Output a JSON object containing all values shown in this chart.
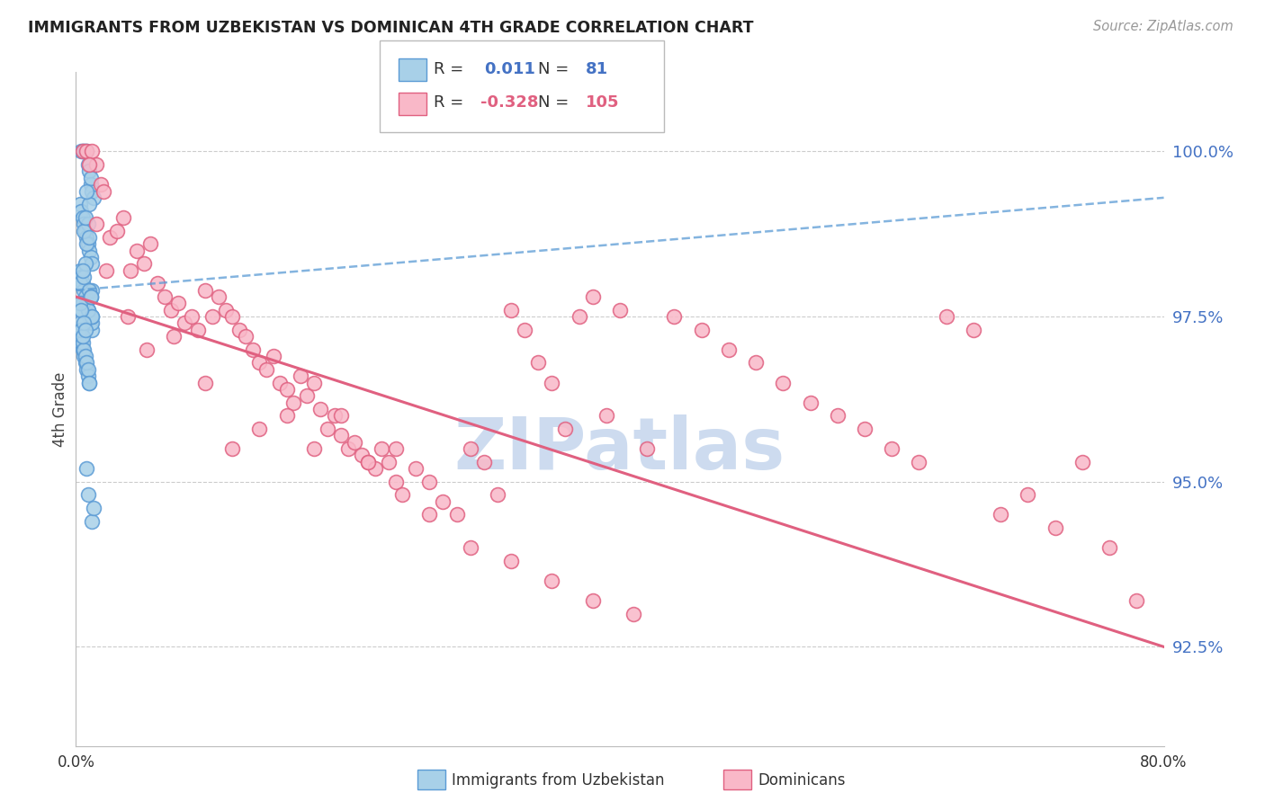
{
  "title": "IMMIGRANTS FROM UZBEKISTAN VS DOMINICAN 4TH GRADE CORRELATION CHART",
  "source": "Source: ZipAtlas.com",
  "ylabel": "4th Grade",
  "y_ticks": [
    92.5,
    95.0,
    97.5,
    100.0
  ],
  "y_tick_labels": [
    "92.5%",
    "95.0%",
    "97.5%",
    "100.0%"
  ],
  "x_min": 0.0,
  "x_max": 80.0,
  "y_min": 91.0,
  "y_max": 101.2,
  "blue_color": "#a8d0e8",
  "pink_color": "#f9b8c8",
  "blue_edge_color": "#5b9bd5",
  "pink_edge_color": "#e06080",
  "blue_line_color": "#5b9bd5",
  "pink_line_color": "#e06080",
  "axis_label_color": "#4472c4",
  "background_color": "#ffffff",
  "grid_color": "#cccccc",
  "watermark_color": "#c8d8ee",
  "uzbekistan_x": [
    0.4,
    0.5,
    0.6,
    0.7,
    0.8,
    0.9,
    1.0,
    1.1,
    1.2,
    1.3,
    0.3,
    0.4,
    0.5,
    0.6,
    0.7,
    0.8,
    0.9,
    1.0,
    1.1,
    1.2,
    0.3,
    0.4,
    0.5,
    0.6,
    0.7,
    0.8,
    0.9,
    1.0,
    1.1,
    1.2,
    0.3,
    0.4,
    0.5,
    0.6,
    0.7,
    0.8,
    0.9,
    1.0,
    1.1,
    1.2,
    0.3,
    0.4,
    0.5,
    0.6,
    0.7,
    0.8,
    0.9,
    1.0,
    1.1,
    1.2,
    0.3,
    0.4,
    0.5,
    0.6,
    0.7,
    0.8,
    0.9,
    1.0,
    1.1,
    1.2,
    0.3,
    0.4,
    0.5,
    0.6,
    0.7,
    0.8,
    0.9,
    1.0,
    1.1,
    1.2,
    0.3,
    0.4,
    0.5,
    0.6,
    0.7,
    0.8,
    0.9,
    1.0,
    1.1,
    1.2,
    1.3
  ],
  "uzbekistan_y": [
    100.0,
    100.0,
    100.0,
    100.0,
    100.0,
    99.8,
    99.7,
    99.5,
    99.4,
    99.3,
    99.2,
    99.1,
    99.0,
    98.9,
    98.8,
    98.7,
    98.6,
    98.5,
    98.4,
    98.3,
    98.2,
    98.1,
    98.0,
    97.9,
    97.8,
    97.7,
    97.6,
    97.5,
    97.4,
    97.3,
    97.2,
    97.1,
    97.0,
    96.9,
    96.8,
    96.7,
    96.6,
    96.5,
    97.5,
    97.4,
    97.3,
    97.2,
    97.1,
    97.0,
    96.9,
    96.8,
    96.7,
    96.5,
    97.8,
    97.9,
    98.0,
    97.6,
    97.7,
    98.1,
    98.3,
    98.6,
    98.9,
    99.2,
    99.6,
    97.5,
    97.4,
    97.3,
    97.2,
    98.8,
    99.0,
    99.4,
    97.6,
    97.9,
    97.8,
    97.5,
    97.7,
    97.6,
    98.2,
    97.4,
    97.3,
    95.2,
    94.8,
    98.7,
    97.8,
    94.4,
    94.6
  ],
  "dominican_x": [
    0.5,
    0.8,
    1.2,
    1.5,
    1.8,
    2.0,
    2.5,
    3.0,
    3.5,
    4.0,
    4.5,
    5.0,
    5.5,
    6.0,
    6.5,
    7.0,
    7.5,
    8.0,
    8.5,
    9.0,
    9.5,
    10.0,
    10.5,
    11.0,
    11.5,
    12.0,
    12.5,
    13.0,
    13.5,
    14.0,
    14.5,
    15.0,
    15.5,
    16.0,
    16.5,
    17.0,
    17.5,
    18.0,
    18.5,
    19.0,
    19.5,
    20.0,
    20.5,
    21.0,
    21.5,
    22.0,
    22.5,
    23.0,
    23.5,
    24.0,
    25.0,
    26.0,
    27.0,
    28.0,
    29.0,
    30.0,
    31.0,
    32.0,
    33.0,
    34.0,
    35.0,
    36.0,
    37.0,
    38.0,
    39.0,
    40.0,
    42.0,
    44.0,
    46.0,
    48.0,
    50.0,
    52.0,
    54.0,
    56.0,
    58.0,
    60.0,
    62.0,
    64.0,
    66.0,
    68.0,
    70.0,
    72.0,
    74.0,
    76.0,
    78.0,
    1.0,
    1.5,
    2.2,
    3.8,
    5.2,
    7.2,
    9.5,
    11.5,
    13.5,
    15.5,
    17.5,
    19.5,
    21.5,
    23.5,
    26.0,
    29.0,
    32.0,
    35.0,
    38.0,
    41.0
  ],
  "dominican_y": [
    100.0,
    100.0,
    100.0,
    99.8,
    99.5,
    99.4,
    98.7,
    98.8,
    99.0,
    98.2,
    98.5,
    98.3,
    98.6,
    98.0,
    97.8,
    97.6,
    97.7,
    97.4,
    97.5,
    97.3,
    97.9,
    97.5,
    97.8,
    97.6,
    97.5,
    97.3,
    97.2,
    97.0,
    96.8,
    96.7,
    96.9,
    96.5,
    96.4,
    96.2,
    96.6,
    96.3,
    96.5,
    96.1,
    95.8,
    96.0,
    95.7,
    95.5,
    95.6,
    95.4,
    95.3,
    95.2,
    95.5,
    95.3,
    95.0,
    94.8,
    95.2,
    95.0,
    94.7,
    94.5,
    95.5,
    95.3,
    94.8,
    97.6,
    97.3,
    96.8,
    96.5,
    95.8,
    97.5,
    97.8,
    96.0,
    97.6,
    95.5,
    97.5,
    97.3,
    97.0,
    96.8,
    96.5,
    96.2,
    96.0,
    95.8,
    95.5,
    95.3,
    97.5,
    97.3,
    94.5,
    94.8,
    94.3,
    95.3,
    94.0,
    93.2,
    99.8,
    98.9,
    98.2,
    97.5,
    97.0,
    97.2,
    96.5,
    95.5,
    95.8,
    96.0,
    95.5,
    96.0,
    95.3,
    95.5,
    94.5,
    94.0,
    93.8,
    93.5,
    93.2,
    93.0
  ],
  "uzbek_trend_x": [
    0.0,
    80.0
  ],
  "uzbek_trend_y": [
    97.9,
    99.3
  ],
  "dominican_trend_x": [
    0.0,
    80.0
  ],
  "dominican_trend_y": [
    97.8,
    92.5
  ]
}
